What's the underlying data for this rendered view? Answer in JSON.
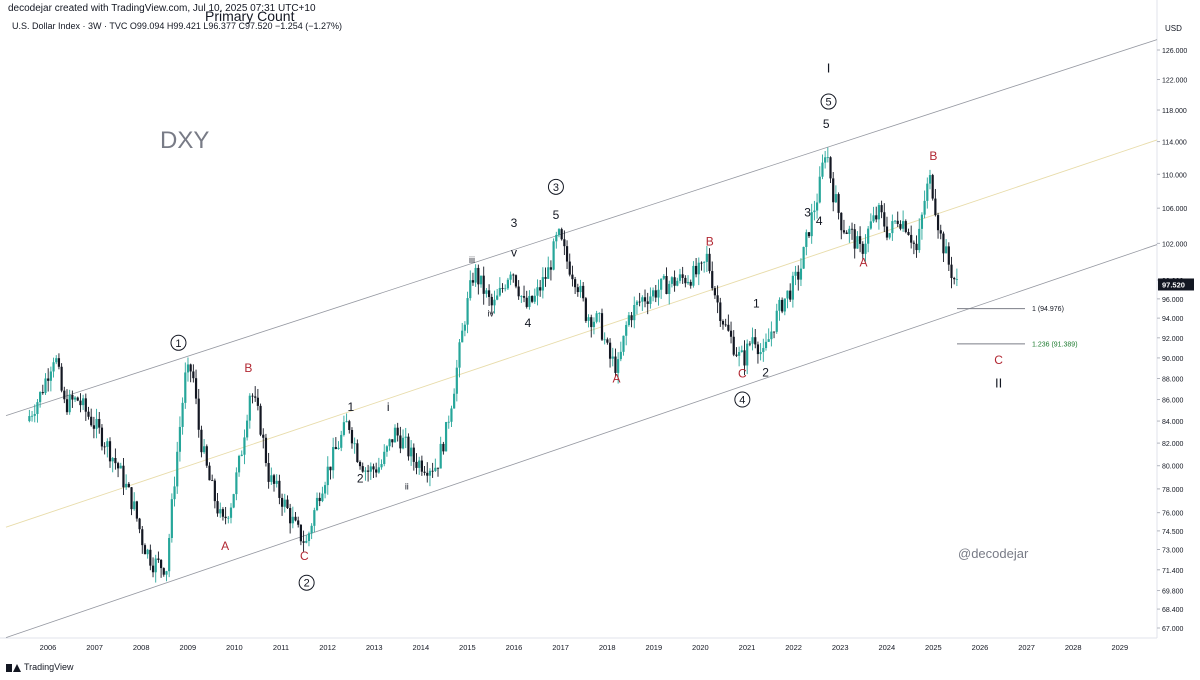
{
  "header": {
    "creator": "decodejar created with TradingView.com, Jul 10, 2025 07:31 UTC+10",
    "title": "Primary Count",
    "symbol_line": "U.S. Dollar Index · 3W · TVC O99.094 H99.421 L96.377 C97.520 −1.254 (−1.27%)"
  },
  "footer": {
    "brand": "TradingView"
  },
  "colors": {
    "up": "#26a69a",
    "down": "#131722",
    "channel": "#9598a1",
    "midline": "#e8dcaa",
    "label_red": "#b22833",
    "fib_green": "#1e7b30"
  },
  "chart_data": {
    "type": "candlestick",
    "title": "DXY",
    "watermark": "@decodejar",
    "y_axis_label": "USD",
    "y_ticks": [
      "67.000",
      "68.400",
      "69.800",
      "71.400",
      "73.000",
      "74.500",
      "76.000",
      "78.000",
      "80.000",
      "82.000",
      "84.000",
      "86.000",
      "88.000",
      "90.000",
      "92.000",
      "94.000",
      "96.000",
      "98.000",
      "102.000",
      "106.000",
      "110.000",
      "114.000",
      "118.000",
      "122.000",
      "126.000"
    ],
    "x_ticks": [
      "2006",
      "2007",
      "2008",
      "2009",
      "2010",
      "2011",
      "2012",
      "2013",
      "2014",
      "2015",
      "2016",
      "2017",
      "2018",
      "2019",
      "2020",
      "2021",
      "2022",
      "2023",
      "2024",
      "2025",
      "2026",
      "2027",
      "2028",
      "2029"
    ],
    "last_price": "97.520",
    "fib_levels": [
      {
        "label": "1 (94.976)",
        "value": 94.976
      },
      {
        "label": "1.236 (91.389)",
        "value": 91.389
      }
    ],
    "price_path": [
      [
        2005.6,
        84
      ],
      [
        2005.9,
        86.5
      ],
      [
        2006.2,
        90.5
      ],
      [
        2006.4,
        85.5
      ],
      [
        2006.7,
        86
      ],
      [
        2007.0,
        84
      ],
      [
        2007.3,
        82
      ],
      [
        2007.6,
        79.5
      ],
      [
        2007.9,
        76.5
      ],
      [
        2008.1,
        73.5
      ],
      [
        2008.3,
        72
      ],
      [
        2008.6,
        71.6
      ],
      [
        2008.8,
        80
      ],
      [
        2009.0,
        88
      ],
      [
        2009.15,
        89
      ],
      [
        2009.3,
        83
      ],
      [
        2009.5,
        79
      ],
      [
        2009.8,
        75
      ],
      [
        2010.0,
        77
      ],
      [
        2010.2,
        81
      ],
      [
        2010.4,
        87
      ],
      [
        2010.6,
        84
      ],
      [
        2010.8,
        79
      ],
      [
        2011.1,
        77
      ],
      [
        2011.4,
        74.5
      ],
      [
        2011.6,
        73.5
      ],
      [
        2011.9,
        78
      ],
      [
        2012.2,
        81
      ],
      [
        2012.5,
        84
      ],
      [
        2012.7,
        81
      ],
      [
        2012.9,
        79.5
      ],
      [
        2013.2,
        80
      ],
      [
        2013.5,
        83
      ],
      [
        2013.7,
        82
      ],
      [
        2013.9,
        80.5
      ],
      [
        2014.2,
        80
      ],
      [
        2014.4,
        80
      ],
      [
        2014.6,
        83
      ],
      [
        2014.8,
        88
      ],
      [
        2015.0,
        94
      ],
      [
        2015.2,
        99
      ],
      [
        2015.4,
        97
      ],
      [
        2015.6,
        95
      ],
      [
        2015.8,
        97
      ],
      [
        2016.0,
        99.5
      ],
      [
        2016.3,
        95
      ],
      [
        2016.5,
        96
      ],
      [
        2016.8,
        99
      ],
      [
        2017.0,
        103
      ],
      [
        2017.2,
        100
      ],
      [
        2017.4,
        98
      ],
      [
        2017.6,
        94.5
      ],
      [
        2017.9,
        93.5
      ],
      [
        2018.1,
        90
      ],
      [
        2018.3,
        89
      ],
      [
        2018.5,
        94
      ],
      [
        2018.8,
        96
      ],
      [
        2019.0,
        96.5
      ],
      [
        2019.3,
        97.5
      ],
      [
        2019.6,
        98
      ],
      [
        2019.9,
        98.5
      ],
      [
        2020.1,
        99
      ],
      [
        2020.2,
        100.5
      ],
      [
        2020.4,
        96
      ],
      [
        2020.6,
        93
      ],
      [
        2020.9,
        90
      ],
      [
        2021.0,
        90
      ],
      [
        2021.2,
        92.5
      ],
      [
        2021.4,
        90
      ],
      [
        2021.6,
        93
      ],
      [
        2021.8,
        95.5
      ],
      [
        2022.0,
        97
      ],
      [
        2022.2,
        99
      ],
      [
        2022.4,
        104
      ],
      [
        2022.6,
        108
      ],
      [
        2022.75,
        113.5
      ],
      [
        2022.9,
        108
      ],
      [
        2023.1,
        104
      ],
      [
        2023.3,
        103
      ],
      [
        2023.5,
        101
      ],
      [
        2023.7,
        104
      ],
      [
        2023.9,
        105.5
      ],
      [
        2024.1,
        103
      ],
      [
        2024.3,
        105
      ],
      [
        2024.5,
        104
      ],
      [
        2024.7,
        101
      ],
      [
        2024.9,
        108
      ],
      [
        2025.0,
        109.5
      ],
      [
        2025.2,
        103
      ],
      [
        2025.4,
        99.5
      ],
      [
        2025.55,
        97.5
      ]
    ],
    "wave_labels": [
      {
        "text": "1",
        "style": "circle",
        "x": 2008.8,
        "y": 91.5
      },
      {
        "text": "B",
        "style": "red",
        "x": 2010.3,
        "y": 89
      },
      {
        "text": "A",
        "style": "red",
        "x": 2009.8,
        "y": 73.3
      },
      {
        "text": "C",
        "style": "red",
        "x": 2011.5,
        "y": 72.5
      },
      {
        "text": "2",
        "style": "circle",
        "x": 2011.55,
        "y": 70.4
      },
      {
        "text": "1",
        "style": "plain",
        "x": 2012.5,
        "y": 85.3
      },
      {
        "text": "2",
        "style": "plain",
        "x": 2012.7,
        "y": 78.9
      },
      {
        "text": "i",
        "style": "plain",
        "x": 2013.3,
        "y": 85.3
      },
      {
        "text": "ii",
        "style": "plain",
        "x": 2013.7,
        "y": 78.3
      },
      {
        "text": "iii",
        "style": "plain",
        "x": 2015.1,
        "y": 100.3
      },
      {
        "text": "iv",
        "style": "plain",
        "x": 2015.5,
        "y": 94.6
      },
      {
        "text": "v",
        "style": "plain",
        "x": 2016.0,
        "y": 101
      },
      {
        "text": "3",
        "style": "plain",
        "x": 2016.0,
        "y": 104.3
      },
      {
        "text": "4",
        "style": "plain",
        "x": 2016.3,
        "y": 93.5
      },
      {
        "text": "5",
        "style": "plain",
        "x": 2016.9,
        "y": 105.2
      },
      {
        "text": "3",
        "style": "circle",
        "x": 2016.9,
        "y": 108.5
      },
      {
        "text": "A",
        "style": "red",
        "x": 2018.2,
        "y": 88
      },
      {
        "text": "B",
        "style": "red",
        "x": 2020.2,
        "y": 102.2
      },
      {
        "text": "C",
        "style": "red",
        "x": 2020.9,
        "y": 88.5
      },
      {
        "text": "4",
        "style": "circle",
        "x": 2020.9,
        "y": 86
      },
      {
        "text": "1",
        "style": "plain",
        "x": 2021.2,
        "y": 95.5
      },
      {
        "text": "2",
        "style": "plain",
        "x": 2021.4,
        "y": 88.6
      },
      {
        "text": "3",
        "style": "plain",
        "x": 2022.3,
        "y": 105.5
      },
      {
        "text": "4",
        "style": "plain",
        "x": 2022.55,
        "y": 104.5
      },
      {
        "text": "5",
        "style": "plain",
        "x": 2022.7,
        "y": 116.2
      },
      {
        "text": "5",
        "style": "circle",
        "x": 2022.75,
        "y": 119.1
      },
      {
        "text": "I",
        "style": "plain",
        "x": 2022.75,
        "y": 123.5
      },
      {
        "text": "A",
        "style": "red",
        "x": 2023.5,
        "y": 99.9
      },
      {
        "text": "B",
        "style": "red",
        "x": 2025.0,
        "y": 112.2
      },
      {
        "text": "C",
        "style": "red",
        "x": 2026.4,
        "y": 89.8
      },
      {
        "text": "II",
        "style": "plain",
        "x": 2026.4,
        "y": 87.5
      }
    ]
  }
}
